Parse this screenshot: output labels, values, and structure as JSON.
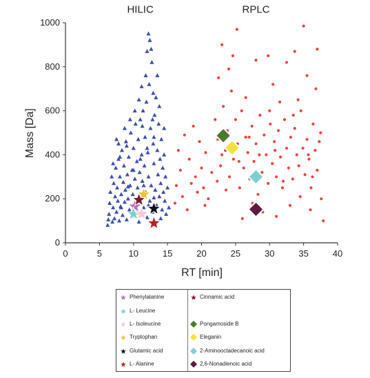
{
  "chart_data": {
    "type": "scatter",
    "xlabel": "RT [min]",
    "ylabel": "Mass [Da]",
    "xlim": [
      0,
      40
    ],
    "ylim": [
      0,
      1000
    ],
    "xticks": [
      0,
      5,
      10,
      15,
      20,
      25,
      30,
      35,
      40
    ],
    "yticks": [
      0,
      200,
      400,
      600,
      800,
      1000
    ],
    "annotations": [
      {
        "text": "HILIC",
        "x": 11,
        "y": 1055
      },
      {
        "text": "RPLC",
        "x": 28,
        "y": 1055
      }
    ],
    "grid": false,
    "series": [
      {
        "name": "HILIC",
        "marker": "triangle",
        "color": "#3a4fa8",
        "points": [
          [
            6.2,
            80
          ],
          [
            6.4,
            130
          ],
          [
            6.5,
            180
          ],
          [
            6.6,
            230
          ],
          [
            6.8,
            300
          ],
          [
            6.9,
            95
          ],
          [
            7.0,
            160
          ],
          [
            7.1,
            270
          ],
          [
            7.2,
            110
          ],
          [
            7.3,
            210
          ],
          [
            7.4,
            340
          ],
          [
            7.5,
            140
          ],
          [
            7.6,
            250
          ],
          [
            7.7,
            190
          ],
          [
            7.8,
            380
          ],
          [
            7.9,
            100
          ],
          [
            8.0,
            300
          ],
          [
            8.1,
            165
          ],
          [
            8.2,
            220
          ],
          [
            8.3,
            420
          ],
          [
            8.4,
            125
          ],
          [
            8.5,
            275
          ],
          [
            8.6,
            350
          ],
          [
            8.7,
            185
          ],
          [
            8.8,
            240
          ],
          [
            8.9,
            460
          ],
          [
            9.0,
            105
          ],
          [
            9.1,
            310
          ],
          [
            9.2,
            200
          ],
          [
            9.3,
            390
          ],
          [
            9.4,
            150
          ],
          [
            9.5,
            260
          ],
          [
            9.6,
            500
          ],
          [
            9.7,
            120
          ],
          [
            9.8,
            330
          ],
          [
            9.9,
            220
          ],
          [
            10.0,
            430
          ],
          [
            10.1,
            180
          ],
          [
            10.2,
            290
          ],
          [
            10.3,
            540
          ],
          [
            10.4,
            135
          ],
          [
            10.5,
            370
          ],
          [
            10.6,
            250
          ],
          [
            10.7,
            470
          ],
          [
            10.8,
            95
          ],
          [
            10.9,
            320
          ],
          [
            11.0,
            560
          ],
          [
            11.1,
            205
          ],
          [
            11.2,
            400
          ],
          [
            11.3,
            280
          ],
          [
            11.4,
            600
          ],
          [
            11.5,
            160
          ],
          [
            11.6,
            350
          ],
          [
            11.7,
            480
          ],
          [
            11.8,
            230
          ],
          [
            11.9,
            640
          ],
          [
            12.0,
            115
          ],
          [
            12.1,
            410
          ],
          [
            12.2,
            300
          ],
          [
            12.3,
            720
          ],
          [
            12.4,
            190
          ],
          [
            12.5,
            520
          ],
          [
            12.6,
            260
          ],
          [
            12.7,
            820
          ],
          [
            12.8,
            140
          ],
          [
            12.9,
            450
          ],
          [
            13.0,
            360
          ],
          [
            13.1,
            580
          ],
          [
            13.2,
            240
          ],
          [
            13.3,
            660
          ],
          [
            13.4,
            170
          ],
          [
            13.5,
            420
          ],
          [
            13.6,
            310
          ],
          [
            13.7,
            540
          ],
          [
            13.8,
            210
          ],
          [
            13.9,
            380
          ],
          [
            14.0,
            270
          ],
          [
            14.1,
            470
          ],
          [
            14.2,
            150
          ],
          [
            14.3,
            340
          ],
          [
            14.4,
            230
          ],
          [
            14.5,
            400
          ],
          [
            14.6,
            190
          ],
          [
            14.7,
            300
          ],
          [
            14.8,
            130
          ],
          [
            15.0,
            250
          ],
          [
            15.2,
            160
          ],
          [
            12.2,
            950
          ],
          [
            12.4,
            920
          ],
          [
            12.0,
            870
          ],
          [
            11.8,
            760
          ],
          [
            12.6,
            880
          ],
          [
            11.2,
            710
          ],
          [
            10.8,
            650
          ],
          [
            13.5,
            760
          ],
          [
            12.9,
            680
          ],
          [
            9.5,
            560
          ],
          [
            8.7,
            520
          ],
          [
            7.8,
            450
          ],
          [
            13.8,
            620
          ],
          [
            6.3,
            105
          ],
          [
            7.0,
            360
          ],
          [
            8.2,
            160
          ],
          [
            9.2,
            255
          ],
          [
            10.5,
            140
          ],
          [
            11.5,
            260
          ],
          [
            12.2,
            170
          ],
          [
            13.0,
            205
          ],
          [
            14.0,
            110
          ],
          [
            10.0,
            330
          ],
          [
            11.0,
            380
          ],
          [
            12.0,
            430
          ],
          [
            13.0,
            480
          ],
          [
            9.0,
            440
          ],
          [
            8.0,
            390
          ],
          [
            7.5,
            470
          ],
          [
            14.5,
            520
          ],
          [
            11.3,
            530
          ],
          [
            10.2,
            600
          ],
          [
            12.8,
            560
          ]
        ]
      },
      {
        "name": "RPLC",
        "marker": "circle",
        "color": "#e8453c",
        "points": [
          [
            16.1,
            180
          ],
          [
            16.3,
            260
          ],
          [
            16.6,
            420
          ],
          [
            16.9,
            330
          ],
          [
            17.2,
            210
          ],
          [
            17.5,
            490
          ],
          [
            17.9,
            150
          ],
          [
            18.2,
            380
          ],
          [
            18.5,
            270
          ],
          [
            18.8,
            530
          ],
          [
            19.1,
            300
          ],
          [
            19.4,
            230
          ],
          [
            19.7,
            460
          ],
          [
            20.0,
            340
          ],
          [
            20.3,
            250
          ],
          [
            20.6,
            410
          ],
          [
            21.0,
            200
          ],
          [
            22.0,
            560
          ],
          [
            22.4,
            470
          ],
          [
            22.8,
            350
          ],
          [
            23.2,
            620
          ],
          [
            23.5,
            420
          ],
          [
            23.8,
            510
          ],
          [
            24.1,
            300
          ],
          [
            24.4,
            690
          ],
          [
            24.7,
            380
          ],
          [
            25.0,
            560
          ],
          [
            25.3,
            450
          ],
          [
            25.6,
            250
          ],
          [
            25.9,
            600
          ],
          [
            26.2,
            340
          ],
          [
            26.5,
            480
          ],
          [
            26.8,
            410
          ],
          [
            27.1,
            290
          ],
          [
            27.4,
            530
          ],
          [
            27.7,
            370
          ],
          [
            28.0,
            450
          ],
          [
            28.3,
            220
          ],
          [
            28.6,
            580
          ],
          [
            28.9,
            320
          ],
          [
            29.2,
            490
          ],
          [
            29.5,
            400
          ],
          [
            29.8,
            270
          ],
          [
            30.1,
            540
          ],
          [
            30.4,
            360
          ],
          [
            30.7,
            460
          ],
          [
            31.0,
            300
          ],
          [
            31.3,
            510
          ],
          [
            31.6,
            390
          ],
          [
            31.9,
            250
          ],
          [
            32.2,
            560
          ],
          [
            32.5,
            430
          ],
          [
            32.8,
            340
          ],
          [
            33.1,
            480
          ],
          [
            33.4,
            290
          ],
          [
            33.7,
            520
          ],
          [
            34.0,
            400
          ],
          [
            34.3,
            350
          ],
          [
            34.6,
            600
          ],
          [
            34.9,
            430
          ],
          [
            35.2,
            310
          ],
          [
            35.5,
            470
          ],
          [
            35.8,
            380
          ],
          [
            36.1,
            250
          ],
          [
            36.4,
            540
          ],
          [
            36.7,
            420
          ],
          [
            37.0,
            330
          ],
          [
            37.3,
            460
          ],
          [
            37.6,
            200
          ],
          [
            37.9,
            100
          ],
          [
            25.2,
            970
          ],
          [
            35.0,
            985
          ],
          [
            24.6,
            850
          ],
          [
            29.8,
            850
          ],
          [
            33.7,
            870
          ],
          [
            37.0,
            880
          ],
          [
            23.0,
            900
          ],
          [
            28.0,
            830
          ],
          [
            32.5,
            820
          ],
          [
            35.5,
            760
          ],
          [
            24.0,
            790
          ],
          [
            30.5,
            720
          ],
          [
            36.8,
            700
          ],
          [
            22.5,
            750
          ],
          [
            26.5,
            660
          ],
          [
            31.5,
            640
          ],
          [
            34.2,
            650
          ],
          [
            27.5,
            180
          ],
          [
            26.0,
            110
          ],
          [
            29.0,
            140
          ],
          [
            31.0,
            120
          ],
          [
            33.0,
            170
          ],
          [
            36.0,
            150
          ],
          [
            22.3,
            280
          ],
          [
            23.6,
            240
          ],
          [
            25.5,
            370
          ],
          [
            28.5,
            400
          ],
          [
            30.0,
            600
          ],
          [
            32.0,
            280
          ],
          [
            34.5,
            210
          ],
          [
            35.7,
            400
          ],
          [
            36.3,
            300
          ],
          [
            37.5,
            500
          ],
          [
            33.5,
            580
          ],
          [
            30.8,
            420
          ],
          [
            27.0,
            480
          ],
          [
            24.8,
            440
          ],
          [
            23.0,
            400
          ],
          [
            21.5,
            320
          ],
          [
            20.5,
            170
          ]
        ]
      }
    ],
    "highlights": [
      {
        "name": "Phenylalanine",
        "marker": "star",
        "color": "#b56fb8",
        "x": 10.2,
        "y": 165
      },
      {
        "name": "L- Leucine",
        "marker": "star",
        "color": "#7fcfd1",
        "x": 10.0,
        "y": 131
      },
      {
        "name": "L- Isoleucine",
        "marker": "star",
        "color": "#f6c8d8",
        "x": 11.2,
        "y": 131
      },
      {
        "name": "Tryptophan",
        "marker": "star",
        "color": "#f1c232",
        "x": 11.5,
        "y": 220
      },
      {
        "name": "Glutamic acid",
        "marker": "star",
        "color": "#111111",
        "x": 13.0,
        "y": 155
      },
      {
        "name": "L- Alanine",
        "marker": "star",
        "color": "#b3222a",
        "x": 13.0,
        "y": 89
      },
      {
        "name": "Cinnamic acid",
        "marker": "star",
        "color": "#7a1a2e",
        "x": 10.8,
        "y": 195
      },
      {
        "name": "Pongamoside B",
        "marker": "diamond",
        "color": "#4a7a2d",
        "x": 23.2,
        "y": 487
      },
      {
        "name": "Eleganin",
        "marker": "diamond",
        "color": "#f5e13a",
        "x": 24.5,
        "y": 432
      },
      {
        "name": "2-Aminooctadecanoic acid",
        "marker": "diamond",
        "color": "#7fcfd1",
        "x": 28.0,
        "y": 300
      },
      {
        "name": "2,6-Nonadienoic acid",
        "marker": "diamond",
        "color": "#5c1a3c",
        "x": 28.0,
        "y": 152
      }
    ],
    "legend": {
      "position": "bottom",
      "columns": [
        [
          "Phenylalanine",
          "L- Leucine",
          "L- Isoleucine",
          "Tryptophan",
          "Glutamic acid",
          "L- Alanine"
        ],
        [
          "Cinnamic acid",
          "",
          "Pongamoside B",
          "Eleganin",
          "2-Aminooctadecanoic acid",
          "2,6-Nonadienoic acid"
        ]
      ]
    }
  }
}
